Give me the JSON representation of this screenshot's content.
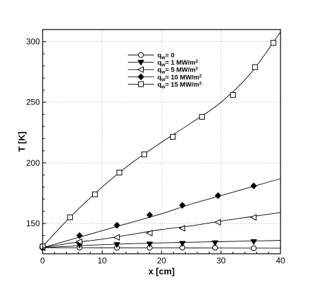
{
  "chart_data": {
    "type": "line",
    "xlabel": "x [cm]",
    "ylabel": "T [K]",
    "xlim": [
      0,
      40
    ],
    "ylim": [
      125,
      310
    ],
    "xticks": [
      0,
      10,
      20,
      30,
      40
    ],
    "yticks": [
      150,
      200,
      250,
      300
    ],
    "xtick_labels": [
      "0",
      "10",
      "20",
      "30",
      "40"
    ],
    "ytick_labels": [
      "150",
      "200",
      "250",
      "300"
    ],
    "grid": true,
    "legend_position": "top-center",
    "series": [
      {
        "name_prefix": "q",
        "name_sub": "w",
        "name_value": "= 0",
        "name_sup": "",
        "marker": "circle-open",
        "line": [
          [
            0,
            130
          ],
          [
            10,
            129.9
          ],
          [
            20,
            129.8
          ],
          [
            30,
            129.7
          ],
          [
            40,
            129.6
          ]
        ],
        "points": [
          [
            0,
            130
          ],
          [
            6.2,
            130
          ],
          [
            12.5,
            130
          ],
          [
            18,
            130
          ],
          [
            23.5,
            130
          ],
          [
            29,
            130
          ],
          [
            35.5,
            129.5
          ]
        ]
      },
      {
        "name_prefix": "q",
        "name_sub": "w",
        "name_value": "= 1 MW/m",
        "name_sup": "2",
        "marker": "triangle-down-filled",
        "line": [
          [
            0,
            130
          ],
          [
            10,
            132.5
          ],
          [
            20,
            134
          ],
          [
            30,
            135
          ],
          [
            40,
            136
          ]
        ],
        "points": [
          [
            0,
            130
          ],
          [
            6.2,
            132
          ],
          [
            12.5,
            132.5
          ],
          [
            18,
            133
          ],
          [
            23.5,
            133.5
          ],
          [
            29,
            134
          ],
          [
            35.5,
            135
          ]
        ]
      },
      {
        "name_prefix": "q",
        "name_sub": "w",
        "name_value": "= 5 MW/m",
        "name_sup": "2",
        "marker": "triangle-left-open",
        "line": [
          [
            0,
            130
          ],
          [
            5,
            134
          ],
          [
            10,
            137
          ],
          [
            15,
            141
          ],
          [
            20,
            145
          ],
          [
            25,
            148
          ],
          [
            30,
            152
          ],
          [
            35,
            155.5
          ],
          [
            40,
            159
          ]
        ],
        "points": [
          [
            0,
            130
          ],
          [
            6.2,
            135
          ],
          [
            12.5,
            138.5
          ],
          [
            18,
            142
          ],
          [
            23.5,
            146
          ],
          [
            29.5,
            151
          ],
          [
            35.5,
            155
          ]
        ]
      },
      {
        "name_prefix": "q",
        "name_sub": "w",
        "name_value": "= 10 MW/m",
        "name_sup": "2",
        "marker": "diamond-filled",
        "line": [
          [
            0,
            130
          ],
          [
            5,
            137
          ],
          [
            10,
            144
          ],
          [
            15,
            151
          ],
          [
            20,
            158
          ],
          [
            25,
            166
          ],
          [
            30,
            173
          ],
          [
            35,
            180
          ],
          [
            40,
            187
          ]
        ],
        "points": [
          [
            0,
            130
          ],
          [
            6.2,
            140
          ],
          [
            12.5,
            148.5
          ],
          [
            18,
            157
          ],
          [
            23.5,
            165
          ],
          [
            29.5,
            173
          ],
          [
            35.5,
            181
          ]
        ]
      },
      {
        "name_prefix": "q",
        "name_sub": "w",
        "name_value": "= 15 MW/m",
        "name_sup": "2",
        "marker": "square-open",
        "line": [
          [
            0,
            131
          ],
          [
            5,
            157
          ],
          [
            10,
            180
          ],
          [
            15,
            200
          ],
          [
            20,
            217
          ],
          [
            25,
            233
          ],
          [
            30,
            250
          ],
          [
            35,
            274
          ],
          [
            40,
            308
          ]
        ],
        "points": [
          [
            0,
            131
          ],
          [
            4.6,
            155
          ],
          [
            8.8,
            174
          ],
          [
            12.9,
            192
          ],
          [
            17.1,
            207
          ],
          [
            21.9,
            221.5
          ],
          [
            26.8,
            238
          ],
          [
            32,
            256
          ],
          [
            35.7,
            279
          ],
          [
            38.8,
            299
          ]
        ]
      }
    ]
  }
}
